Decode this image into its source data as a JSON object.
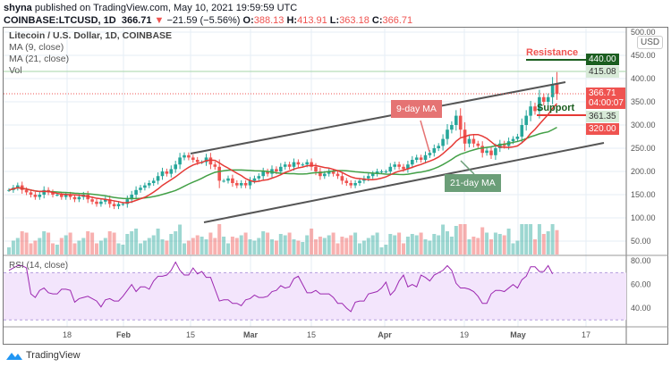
{
  "header": {
    "author": "shyna",
    "published_text": "published on TradingView.com, May 10, 2021 19:59:59 UTC",
    "symbol": "COINBASE:LTCUSD, 1D",
    "last": "366.71",
    "change": "−21.59 (−5.56%)",
    "o_label": "O:",
    "open": "388.13",
    "h_label": "H:",
    "high": "413.91",
    "l_label": "L:",
    "low": "363.18",
    "c_label": "C:",
    "close": "366.71"
  },
  "legend": {
    "title": "Litecoin / U.S. Dollar, 1D, COINBASE",
    "ma9": "MA (9, close)",
    "ma21": "MA (21, close)",
    "vol": "Vol"
  },
  "price_axis": {
    "currency": "USD",
    "ticks": [
      "500.00",
      "450.00",
      "400.00",
      "350.00",
      "300.00",
      "250.00",
      "200.00",
      "150.00",
      "100.00",
      "50.00"
    ]
  },
  "price_tags": {
    "resistance_level": "440.00",
    "high_line": "415.08",
    "last": "366.71",
    "countdown": "04:00:07",
    "ma9": "361.35",
    "support_level": "320.00"
  },
  "annotations": {
    "resistance": "Resistance",
    "support": "Support",
    "ma9": "9-day MA",
    "ma21": "21-day MA"
  },
  "rsi": {
    "label": "RSI (14, close)",
    "ticks": [
      "80.00",
      "60.00",
      "40.00"
    ],
    "values": [
      72,
      74,
      76,
      76,
      74,
      52,
      49,
      55,
      57,
      53,
      52,
      52,
      56,
      56,
      55,
      45,
      48,
      49,
      50,
      48,
      46,
      41,
      47,
      48,
      46,
      46,
      50,
      55,
      60,
      54,
      58,
      58,
      56,
      63,
      67,
      67,
      68,
      72,
      79,
      72,
      68,
      68,
      74,
      69,
      71,
      66,
      66,
      56,
      46,
      47,
      47,
      44,
      44,
      42,
      47,
      48,
      51,
      49,
      49,
      50,
      54,
      55,
      59,
      57,
      58,
      65,
      67,
      60,
      53,
      53,
      55,
      52,
      52,
      52,
      49,
      44,
      44,
      40,
      37,
      45,
      46,
      46,
      52,
      53,
      54,
      57,
      62,
      51,
      55,
      63,
      68,
      58,
      60,
      58,
      68,
      66,
      63,
      68,
      70,
      72,
      76,
      72,
      61,
      57,
      57,
      56,
      54,
      50,
      44,
      44,
      52,
      55,
      55,
      54,
      57,
      60,
      57,
      64,
      67,
      75,
      75,
      71,
      71,
      76,
      69
    ]
  },
  "time_axis": [
    "18",
    "Feb",
    "15",
    "Mar",
    "15",
    "Apr",
    "19",
    "May",
    "17"
  ],
  "chart_data": {
    "type": "candlestick",
    "interval": "1D",
    "first_date": "2021-01-05",
    "last_date": "2021-05-10",
    "closes": [
      160,
      165,
      170,
      160,
      155,
      150,
      145,
      150,
      160,
      155,
      150,
      150,
      145,
      150,
      145,
      140,
      145,
      150,
      140,
      135,
      130,
      135,
      140,
      130,
      125,
      130,
      130,
      140,
      150,
      160,
      165,
      170,
      175,
      180,
      190,
      200,
      195,
      205,
      215,
      230,
      235,
      230,
      225,
      220,
      220,
      230,
      215,
      210,
      180,
      180,
      185,
      175,
      170,
      175,
      170,
      180,
      185,
      190,
      200,
      195,
      205,
      200,
      210,
      215,
      210,
      220,
      215,
      215,
      220,
      210,
      200,
      190,
      195,
      200,
      195,
      190,
      180,
      175,
      170,
      175,
      180,
      185,
      190,
      195,
      200,
      200,
      200,
      210,
      215,
      210,
      205,
      215,
      225,
      230,
      225,
      235,
      240,
      250,
      255,
      270,
      290,
      300,
      320,
      290,
      260,
      270,
      260,
      255,
      240,
      245,
      235,
      250,
      260,
      255,
      265,
      270,
      275,
      300,
      320,
      340,
      330,
      360,
      350,
      360,
      388.13,
      366.71
    ],
    "ylim": [
      0,
      520
    ]
  },
  "colors": {
    "up": "#26a69a",
    "down": "#ef5350",
    "ma9": "#e53935",
    "ma21": "#43a047",
    "rsi": "#9c27b0",
    "resistance": "#ef5350",
    "resistance_tag": "#1b5e20",
    "support": "#1b5e20",
    "support_line": "#e53935"
  },
  "brand": "TradingView"
}
